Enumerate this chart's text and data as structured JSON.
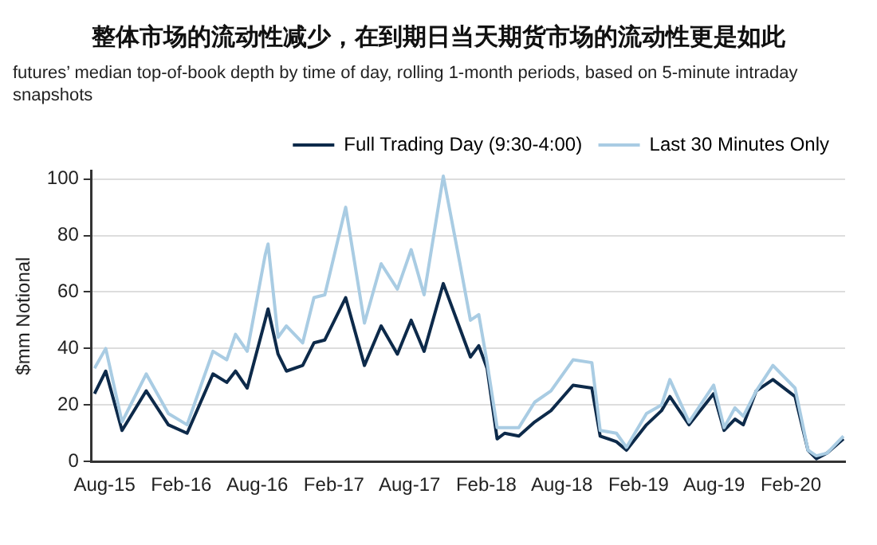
{
  "chart_data": {
    "type": "line",
    "title": "整体市场的流动性减少，在到期日当天期货市场的流动性更是如此",
    "subtitle": "futures’ median top-of-book depth by time of day, rolling 1-month periods, based on 5-minute intraday snapshots",
    "ylabel": "$mm Notional",
    "x": [
      "2015-07-08",
      "2015-08-04",
      "2015-09-12",
      "2015-11-09",
      "2016-01-01",
      "2016-02-15",
      "2016-04-17",
      "2016-05-20",
      "2016-06-10",
      "2016-07-08",
      "2016-08-20",
      "2016-08-27",
      "2016-09-20",
      "2016-10-10",
      "2016-11-18",
      "2016-12-15",
      "2017-01-10",
      "2017-03-01",
      "2017-04-15",
      "2017-05-25",
      "2017-07-03",
      "2017-08-05",
      "2017-09-05",
      "2017-10-21",
      "2017-11-30",
      "2017-12-25",
      "2018-01-14",
      "2018-02-03",
      "2018-02-27",
      "2018-03-17",
      "2018-04-20",
      "2018-05-28",
      "2018-07-06",
      "2018-08-28",
      "2018-10-12",
      "2018-11-01",
      "2018-12-10",
      "2019-01-03",
      "2019-02-20",
      "2019-03-28",
      "2019-04-17",
      "2019-06-02",
      "2019-07-31",
      "2019-08-25",
      "2019-09-20",
      "2019-10-10",
      "2019-11-10",
      "2019-12-20",
      "2020-02-11",
      "2020-03-13",
      "2020-04-02",
      "2020-04-28",
      "2020-06-06"
    ],
    "series": [
      {
        "name": "Full Trading Day (9:30-4:00)",
        "color": "#0d2a4a",
        "values": [
          24,
          32,
          11,
          25,
          13,
          10,
          31,
          28,
          32,
          26,
          50,
          54,
          38,
          32,
          34,
          42,
          43,
          58,
          34,
          48,
          38,
          50,
          39,
          63,
          47,
          37,
          41,
          33,
          8,
          10,
          9,
          14,
          18,
          27,
          26,
          9,
          7,
          4,
          13,
          18,
          23,
          13,
          24,
          11,
          15,
          13,
          25,
          29,
          23,
          4,
          1,
          3,
          8
        ]
      },
      {
        "name": "Last 30 Minutes Only",
        "color": "#a9cce3",
        "values": [
          33,
          40,
          14,
          31,
          17,
          13,
          39,
          36,
          45,
          39,
          73,
          77,
          44,
          48,
          42,
          58,
          59,
          90,
          49,
          70,
          61,
          75,
          59,
          101,
          70,
          50,
          52,
          35,
          12,
          12,
          12,
          21,
          25,
          36,
          35,
          11,
          10,
          5,
          17,
          20,
          29,
          14,
          27,
          12,
          19,
          16,
          25,
          34,
          26,
          4,
          2,
          3,
          9
        ]
      }
    ],
    "xlim": [
      "2015-07-01",
      "2020-06-10"
    ],
    "xticks": [
      {
        "value": "2015-08-01",
        "label": "Aug-15"
      },
      {
        "value": "2016-02-01",
        "label": "Feb-16"
      },
      {
        "value": "2016-08-01",
        "label": "Aug-16"
      },
      {
        "value": "2017-02-01",
        "label": "Feb-17"
      },
      {
        "value": "2017-08-01",
        "label": "Aug-17"
      },
      {
        "value": "2018-02-01",
        "label": "Feb-18"
      },
      {
        "value": "2018-08-01",
        "label": "Aug-18"
      },
      {
        "value": "2019-02-01",
        "label": "Feb-19"
      },
      {
        "value": "2019-08-01",
        "label": "Aug-19"
      },
      {
        "value": "2020-02-01",
        "label": "Feb-20"
      }
    ],
    "ylim": [
      0,
      103
    ],
    "yticks": [
      0,
      20,
      40,
      60,
      80,
      100
    ],
    "grid": "y",
    "legend": "top right",
    "marker": "none",
    "line_style": "solid"
  }
}
